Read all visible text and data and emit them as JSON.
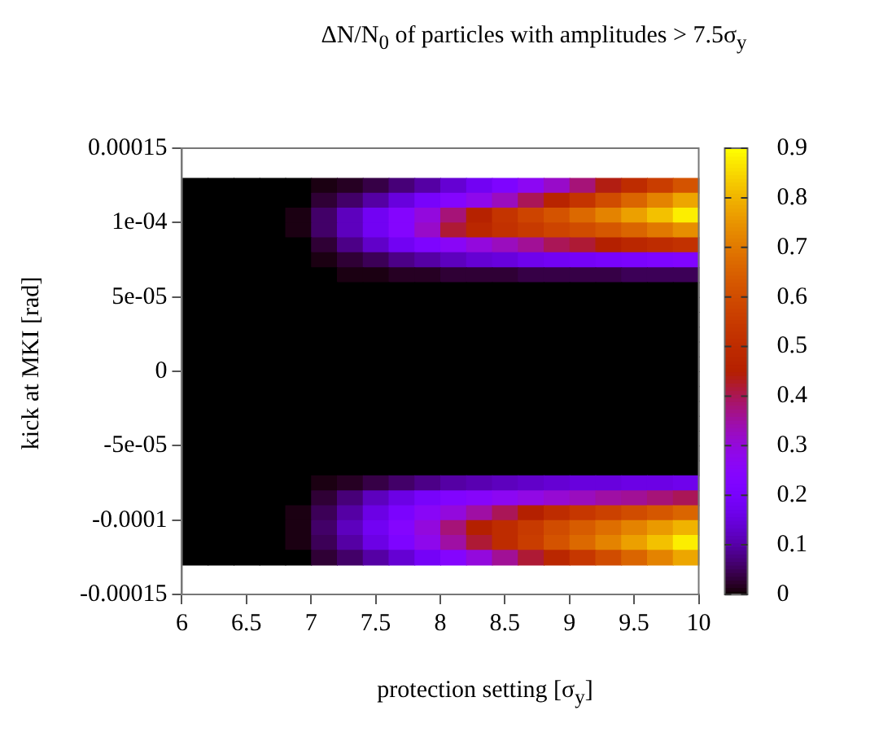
{
  "chart_data": {
    "type": "heatmap",
    "title": "ΔN/N$_{0}$ of particles with amplitudes > 7.5σ$_{y}$",
    "xlabel": "protection setting [σ$_{y}$]",
    "ylabel": "kick at MKI [rad]",
    "x": [
      6.1,
      6.3,
      6.5,
      6.7,
      6.9,
      7.1,
      7.3,
      7.5,
      7.7,
      7.9,
      8.1,
      8.3,
      8.5,
      8.7,
      8.9,
      9.1,
      9.3,
      9.5,
      9.7,
      9.9
    ],
    "y": [
      0.000125,
      0.000115,
      0.000105,
      9.5e-05,
      8.5e-05,
      7.5e-05,
      6.5e-05,
      5.5e-05,
      4.5e-05,
      3.5e-05,
      2.5e-05,
      1.5e-05,
      5e-06,
      -5e-06,
      -1.5e-05,
      -2.5e-05,
      -3.5e-05,
      -4.5e-05,
      -5.5e-05,
      -6.5e-05,
      -7.5e-05,
      -8.5e-05,
      -9.5e-05,
      -0.000105,
      -0.000115,
      -0.000125
    ],
    "cells": [
      [
        0,
        0,
        0,
        0,
        0,
        0.01,
        0.02,
        0.04,
        0.07,
        0.1,
        0.14,
        0.18,
        0.22,
        0.27,
        0.32,
        0.38,
        0.44,
        0.5,
        0.56,
        0.62
      ],
      [
        0,
        0,
        0,
        0,
        0,
        0.03,
        0.06,
        0.1,
        0.15,
        0.2,
        0.24,
        0.28,
        0.33,
        0.4,
        0.47,
        0.53,
        0.6,
        0.66,
        0.72,
        0.78
      ],
      [
        0,
        0,
        0,
        0,
        0.01,
        0.06,
        0.12,
        0.18,
        0.24,
        0.3,
        0.38,
        0.46,
        0.53,
        0.58,
        0.62,
        0.67,
        0.72,
        0.77,
        0.82,
        0.88
      ],
      [
        0,
        0,
        0,
        0,
        0.01,
        0.06,
        0.12,
        0.18,
        0.24,
        0.32,
        0.42,
        0.48,
        0.52,
        0.55,
        0.58,
        0.6,
        0.63,
        0.66,
        0.7,
        0.74
      ],
      [
        0,
        0,
        0,
        0,
        0,
        0.03,
        0.08,
        0.13,
        0.18,
        0.22,
        0.26,
        0.3,
        0.33,
        0.36,
        0.4,
        0.42,
        0.45,
        0.48,
        0.5,
        0.52
      ],
      [
        0,
        0,
        0,
        0,
        0,
        0.01,
        0.03,
        0.05,
        0.08,
        0.1,
        0.12,
        0.14,
        0.15,
        0.17,
        0.18,
        0.19,
        0.2,
        0.21,
        0.22,
        0.23
      ],
      [
        0,
        0,
        0,
        0,
        0,
        0,
        0.01,
        0.01,
        0.02,
        0.02,
        0.03,
        0.03,
        0.03,
        0.04,
        0.04,
        0.04,
        0.04,
        0.05,
        0.05,
        0.05
      ],
      [
        0,
        0,
        0,
        0,
        0,
        0,
        0,
        0,
        0,
        0,
        0,
        0,
        0,
        0,
        0,
        0,
        0,
        0,
        0,
        0
      ],
      [
        0,
        0,
        0,
        0,
        0,
        0,
        0,
        0,
        0,
        0,
        0,
        0,
        0,
        0,
        0,
        0,
        0,
        0,
        0,
        0
      ],
      [
        0,
        0,
        0,
        0,
        0,
        0,
        0,
        0,
        0,
        0,
        0,
        0,
        0,
        0,
        0,
        0,
        0,
        0,
        0,
        0
      ],
      [
        0,
        0,
        0,
        0,
        0,
        0,
        0,
        0,
        0,
        0,
        0,
        0,
        0,
        0,
        0,
        0,
        0,
        0,
        0,
        0
      ],
      [
        0,
        0,
        0,
        0,
        0,
        0,
        0,
        0,
        0,
        0,
        0,
        0,
        0,
        0,
        0,
        0,
        0,
        0,
        0,
        0
      ],
      [
        0,
        0,
        0,
        0,
        0,
        0,
        0,
        0,
        0,
        0,
        0,
        0,
        0,
        0,
        0,
        0,
        0,
        0,
        0,
        0
      ],
      [
        0,
        0,
        0,
        0,
        0,
        0,
        0,
        0,
        0,
        0,
        0,
        0,
        0,
        0,
        0,
        0,
        0,
        0,
        0,
        0
      ],
      [
        0,
        0,
        0,
        0,
        0,
        0,
        0,
        0,
        0,
        0,
        0,
        0,
        0,
        0,
        0,
        0,
        0,
        0,
        0,
        0
      ],
      [
        0,
        0,
        0,
        0,
        0,
        0,
        0,
        0,
        0,
        0,
        0,
        0,
        0,
        0,
        0,
        0,
        0,
        0,
        0,
        0
      ],
      [
        0,
        0,
        0,
        0,
        0,
        0,
        0,
        0,
        0,
        0,
        0,
        0,
        0,
        0,
        0,
        0,
        0,
        0,
        0,
        0
      ],
      [
        0,
        0,
        0,
        0,
        0,
        0,
        0,
        0,
        0,
        0,
        0,
        0,
        0,
        0,
        0,
        0,
        0,
        0,
        0,
        0
      ],
      [
        0,
        0,
        0,
        0,
        0,
        0,
        0,
        0,
        0,
        0,
        0,
        0,
        0,
        0,
        0,
        0,
        0,
        0,
        0,
        0
      ],
      [
        0,
        0,
        0,
        0,
        0,
        0,
        0,
        0,
        0,
        0,
        0,
        0,
        0,
        0,
        0,
        0,
        0,
        0,
        0,
        0
      ],
      [
        0,
        0,
        0,
        0,
        0,
        0.01,
        0.02,
        0.04,
        0.06,
        0.08,
        0.1,
        0.11,
        0.12,
        0.13,
        0.14,
        0.15,
        0.15,
        0.16,
        0.16,
        0.17
      ],
      [
        0,
        0,
        0,
        0,
        0,
        0.03,
        0.07,
        0.12,
        0.16,
        0.2,
        0.23,
        0.25,
        0.27,
        0.29,
        0.31,
        0.33,
        0.35,
        0.36,
        0.38,
        0.4
      ],
      [
        0,
        0,
        0,
        0,
        0.01,
        0.05,
        0.1,
        0.16,
        0.21,
        0.26,
        0.3,
        0.35,
        0.4,
        0.45,
        0.5,
        0.54,
        0.57,
        0.6,
        0.63,
        0.66
      ],
      [
        0,
        0,
        0,
        0,
        0.01,
        0.06,
        0.12,
        0.18,
        0.24,
        0.3,
        0.38,
        0.45,
        0.5,
        0.55,
        0.6,
        0.64,
        0.68,
        0.72,
        0.76,
        0.8
      ],
      [
        0,
        0,
        0,
        0,
        0.01,
        0.05,
        0.1,
        0.16,
        0.22,
        0.28,
        0.35,
        0.42,
        0.5,
        0.56,
        0.62,
        0.67,
        0.72,
        0.77,
        0.82,
        0.88
      ],
      [
        0,
        0,
        0,
        0,
        0,
        0.03,
        0.06,
        0.1,
        0.14,
        0.19,
        0.24,
        0.3,
        0.36,
        0.42,
        0.48,
        0.54,
        0.6,
        0.66,
        0.72,
        0.78
      ]
    ],
    "xlim": [
      6,
      10
    ],
    "xticks": [
      6,
      6.5,
      7,
      7.5,
      8,
      8.5,
      9,
      9.5,
      10
    ],
    "ylim": [
      -0.00015,
      0.00015
    ],
    "yticks": [
      -0.00015,
      -0.0001,
      {
        "value": -5e-05,
        "label": "-5e-05"
      },
      0,
      {
        "value": 5e-05,
        "label": "5e-05"
      },
      {
        "value": 0.0001,
        "label": "1e-04"
      },
      0.00015
    ],
    "clim": [
      0,
      0.9
    ],
    "cticks": [
      0,
      0.1,
      0.2,
      0.3,
      0.4,
      0.5,
      0.6,
      0.7,
      0.8,
      0.9
    ]
  }
}
